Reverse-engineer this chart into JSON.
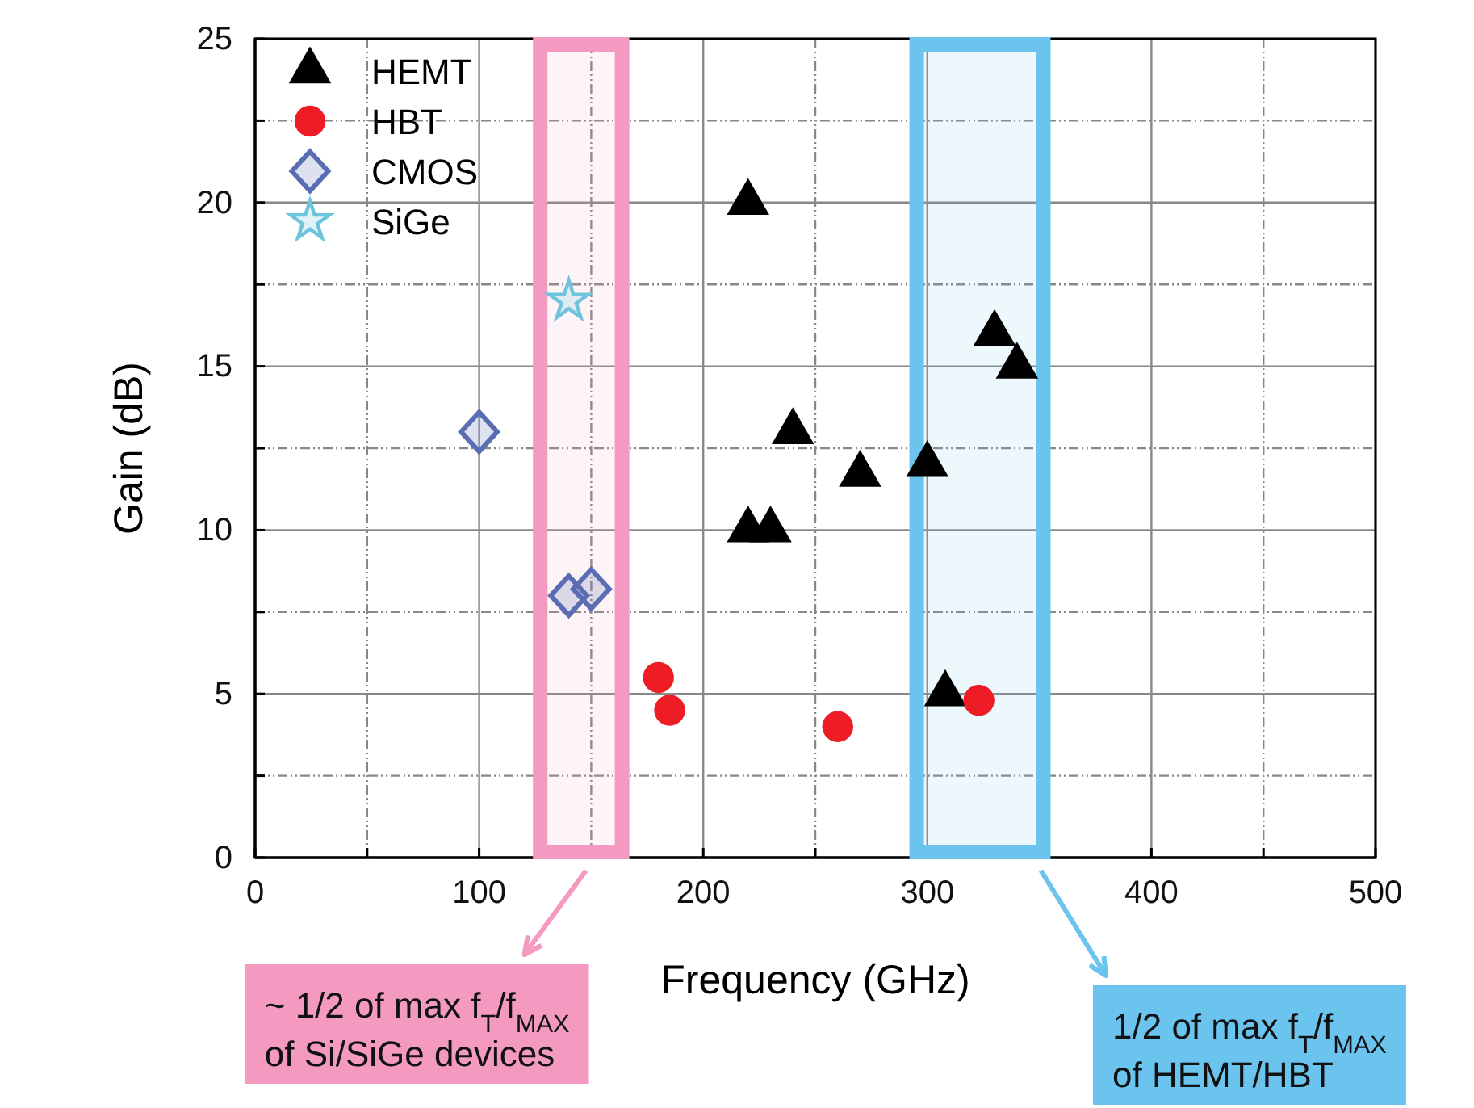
{
  "chart_data": {
    "type": "scatter",
    "xlabel": "Frequency (GHz)",
    "ylabel": "Gain (dB)",
    "xlim": [
      0,
      500
    ],
    "ylim": [
      0,
      25
    ],
    "xticks": [
      0,
      {
        "value": 50,
        "label": null
      },
      100,
      {
        "value": 150,
        "label": null
      },
      200,
      {
        "value": 250,
        "label": null
      },
      300,
      {
        "value": 350,
        "label": null
      },
      400,
      {
        "value": 450,
        "label": null
      },
      500
    ],
    "yticks": [
      0,
      {
        "value": 2.5,
        "label": null
      },
      5,
      {
        "value": 7.5,
        "label": null
      },
      10,
      {
        "value": 12.5,
        "label": null
      },
      15,
      {
        "value": 17.5,
        "label": null
      },
      20,
      {
        "value": 22.5,
        "label": null
      },
      25
    ],
    "grid": true,
    "legend": "top left",
    "series": [
      {
        "name": "HEMT",
        "color": "#000000",
        "marker": "triangle",
        "x": [
          220,
          240,
          220,
          230,
          270,
          300,
          330,
          340,
          308
        ],
        "values": [
          20,
          13,
          10,
          10,
          11.7,
          12,
          16,
          15,
          5
        ]
      },
      {
        "name": "HBT",
        "color": "#ee1c25",
        "marker": "circle",
        "x": [
          180,
          185,
          260,
          323
        ],
        "values": [
          5.5,
          4.5,
          4,
          4.8
        ]
      },
      {
        "name": "CMOS",
        "color": "#5b6db2",
        "marker": "diamond",
        "x": [
          100,
          140,
          150
        ],
        "values": [
          13,
          8,
          8.2
        ]
      },
      {
        "name": "SiGe",
        "color": "#6cc5dc",
        "marker": "star",
        "x": [
          140
        ],
        "values": [
          17
        ]
      }
    ],
    "bands": [
      {
        "axis": "x",
        "from": 124,
        "to": 167,
        "color": "#f49ac1",
        "label": "~ 1/2 of max f$_{T}$/f$_{MAX}$\nof Si/SiGe devices"
      },
      {
        "axis": "x",
        "from": 292,
        "to": 355,
        "color": "#6ac4ee",
        "label": "1/2 of max f$_{T}$/f$_{MAX}$\nof HEMT/HBT"
      }
    ]
  }
}
